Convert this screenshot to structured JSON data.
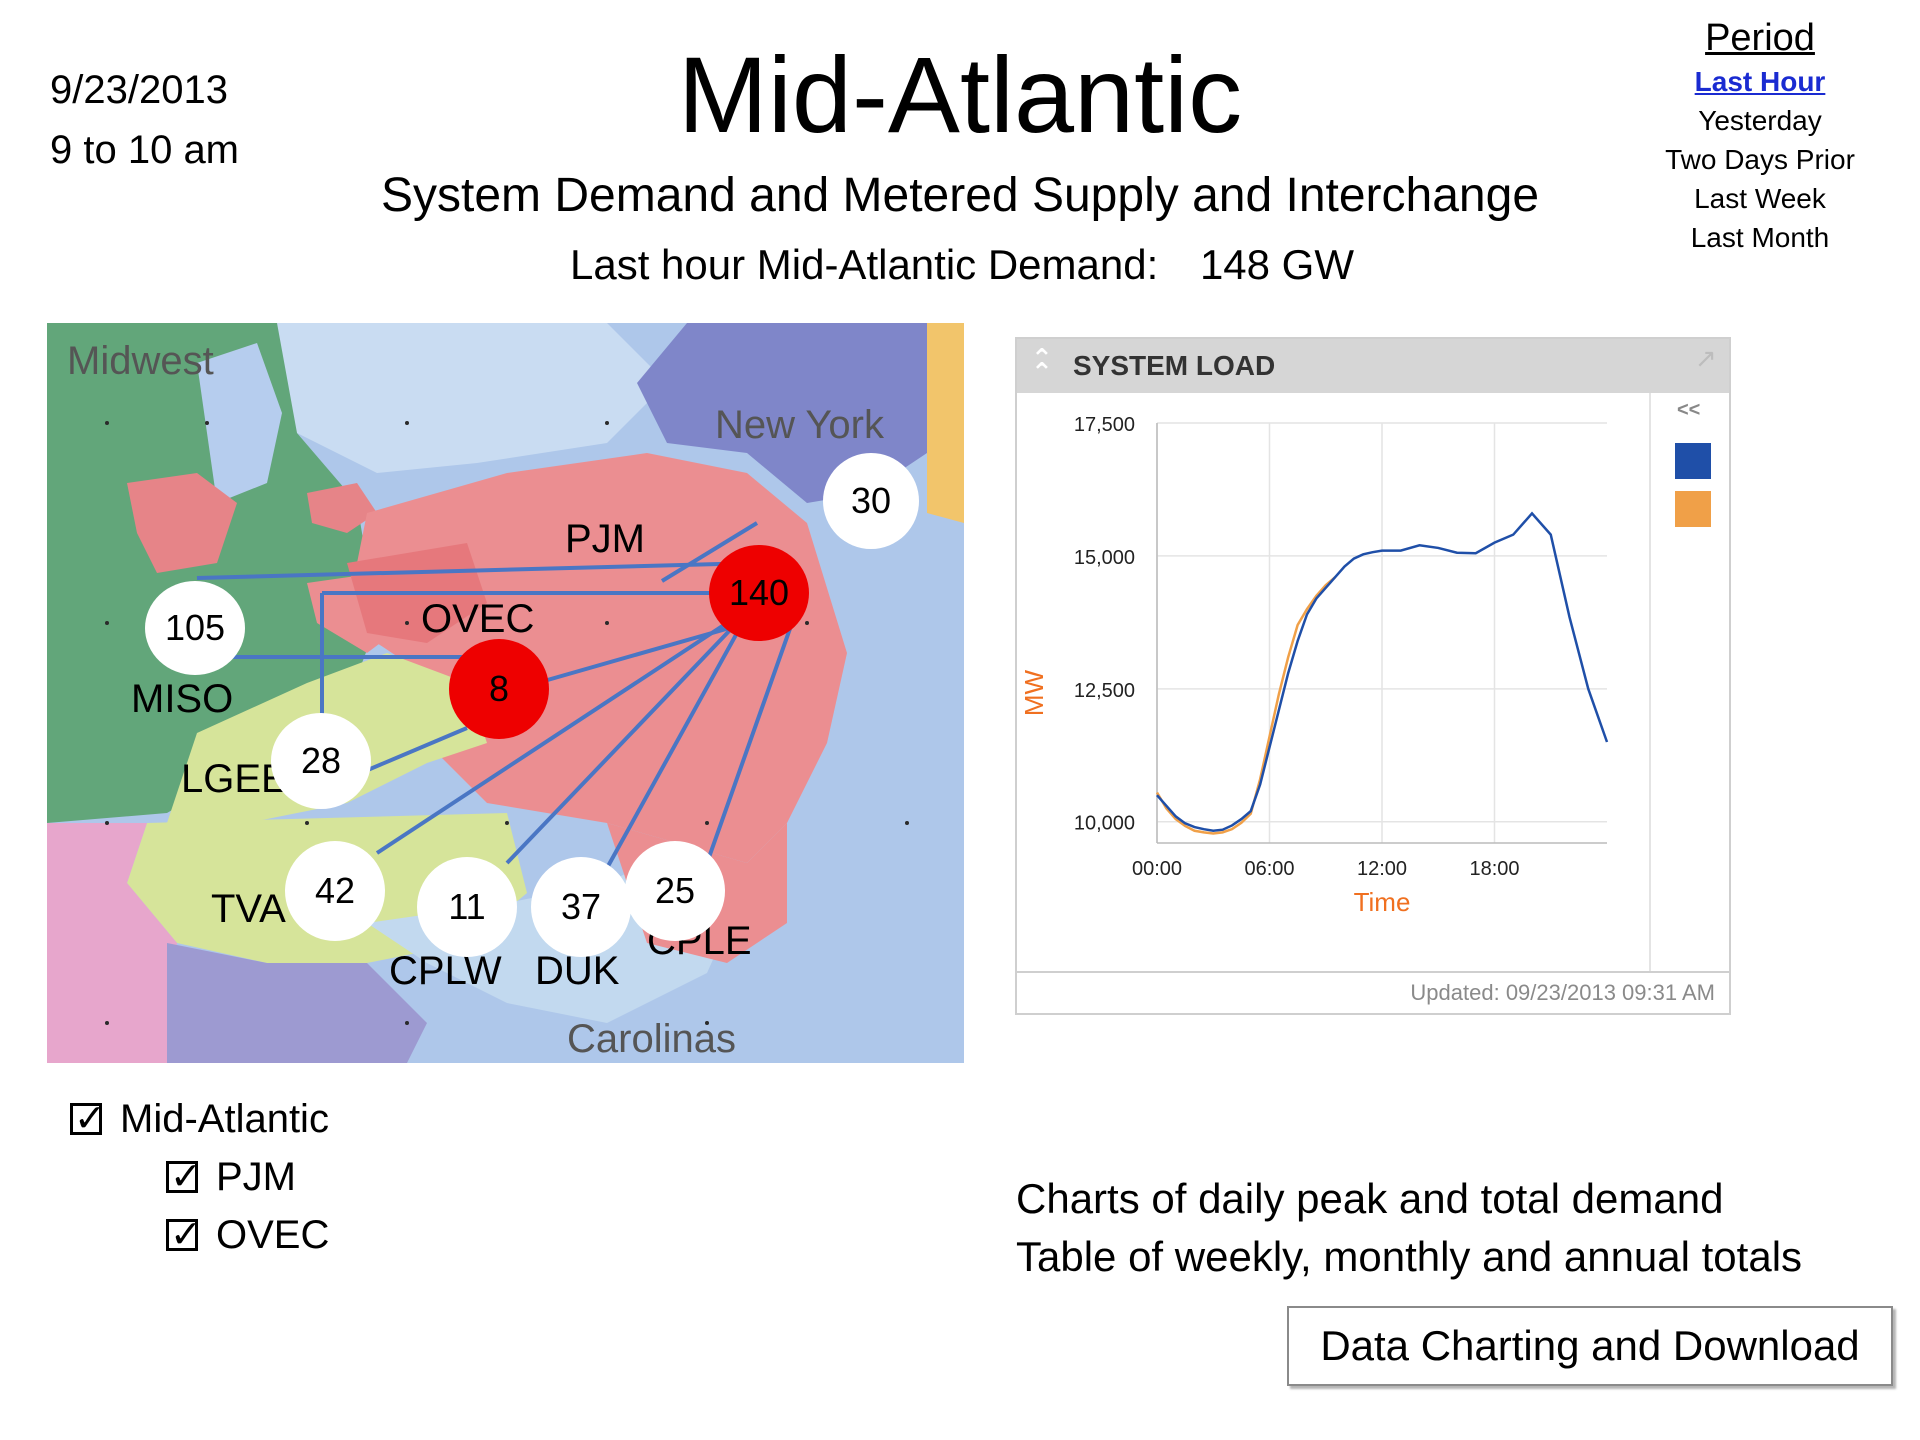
{
  "header": {
    "date": "9/23/2013",
    "time_range": "9 to 10 am",
    "title": "Mid-Atlantic",
    "subtitle": "System Demand and Metered Supply and Interchange",
    "demand_label": "Last hour Mid-Atlantic Demand:",
    "demand_value": "148 GW"
  },
  "period": {
    "heading": "Period",
    "options": [
      "Last Hour",
      "Yesterday",
      "Two Days Prior",
      "Last Week",
      "Last Month"
    ],
    "selected": "Last Hour"
  },
  "map": {
    "region_labels": {
      "midwest": "Midwest",
      "new_york": "New York",
      "carolinas": "Carolinas"
    },
    "area_labels": {
      "pjm": "PJM",
      "ovec": "OVEC",
      "miso": "MISO",
      "lgee": "LGEE",
      "tva": "TVA",
      "cplw": "CPLW",
      "duk": "DUK",
      "cple": "CPLE"
    },
    "nodes": {
      "pjm": "140",
      "ovec": "8",
      "ny": "30",
      "miso": "105",
      "lgee": "28",
      "tva": "42",
      "cplw": "11",
      "duk": "37",
      "cple": "25"
    },
    "colors": {
      "hub": "#ee0000",
      "interchange_line": "#4a76c4"
    }
  },
  "filters": [
    {
      "label": "Mid-Atlantic",
      "checked": true
    },
    {
      "label": "PJM",
      "checked": true
    },
    {
      "label": "OVEC",
      "checked": true
    }
  ],
  "system_load": {
    "title": "SYSTEM LOAD",
    "collapse_legend": "<<",
    "updated": "Updated: 09/23/2013 09:31 AM",
    "colors": {
      "today": "#1f4fa8",
      "forecast": "#f0a048"
    }
  },
  "chart_data": {
    "type": "line",
    "title": "SYSTEM LOAD",
    "xlabel": "Time",
    "ylabel": "MW",
    "x_ticks": [
      "00:00",
      "06:00",
      "12:00",
      "18:00"
    ],
    "y_ticks": [
      "17,500",
      "15,000",
      "12,500",
      "10,000"
    ],
    "xlim": [
      0,
      24
    ],
    "ylim": [
      9600,
      17500
    ],
    "grid": true,
    "series": [
      {
        "color": "#1f4fa8",
        "x": [
          0,
          0.5,
          1,
          1.5,
          2,
          2.5,
          3,
          3.5,
          4,
          4.5,
          5,
          5.5,
          6,
          6.5,
          7,
          7.5,
          8,
          8.5,
          9,
          9.5,
          10,
          10.5,
          11,
          11.5,
          12,
          13,
          14,
          15,
          16,
          17,
          18,
          19,
          20,
          21,
          22,
          23,
          24
        ],
        "y": [
          10500,
          10300,
          10100,
          9970,
          9900,
          9860,
          9830,
          9850,
          9930,
          10050,
          10200,
          10700,
          11400,
          12100,
          12800,
          13400,
          13900,
          14200,
          14400,
          14600,
          14800,
          14950,
          15030,
          15070,
          15100,
          15100,
          15200,
          15150,
          15060,
          15050,
          15250,
          15400,
          15800,
          15400,
          13850,
          12500,
          11500
        ]
      },
      {
        "color": "#f0a048",
        "x": [
          0,
          0.5,
          1,
          1.5,
          2,
          2.5,
          3,
          3.5,
          4,
          4.5,
          5,
          5.5,
          6,
          6.5,
          7,
          7.5,
          8,
          8.5,
          9,
          9.5
        ],
        "y": [
          10550,
          10250,
          10050,
          9920,
          9830,
          9800,
          9780,
          9800,
          9860,
          9980,
          10150,
          10800,
          11600,
          12400,
          13100,
          13700,
          14000,
          14250,
          14450,
          14600
        ]
      }
    ]
  },
  "bottom": {
    "charts_line": "Charts of daily peak and total demand",
    "table_line": "Table of weekly, monthly and annual totals",
    "download_button": "Data Charting and Download"
  }
}
